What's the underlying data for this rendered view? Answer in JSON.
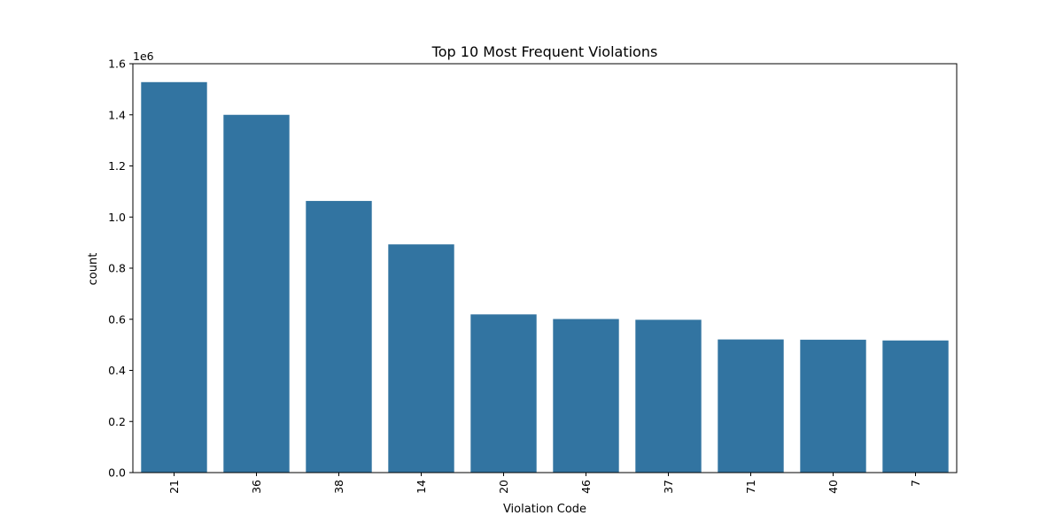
{
  "chart_data": {
    "type": "bar",
    "title": "Top 10 Most Frequent Violations",
    "xlabel": "Violation Code",
    "ylabel": "count",
    "y_scale_label": "1e6",
    "categories": [
      "21",
      "36",
      "38",
      "14",
      "20",
      "46",
      "37",
      "71",
      "40",
      "7"
    ],
    "values": [
      1528000,
      1400000,
      1063000,
      893000,
      619000,
      601000,
      598000,
      521000,
      520000,
      517000
    ],
    "ylim": [
      0,
      1600000
    ],
    "yticks": [
      0,
      200000,
      400000,
      600000,
      800000,
      1000000,
      1200000,
      1400000,
      1600000
    ],
    "ytick_labels": [
      "0.0",
      "0.2",
      "0.4",
      "0.6",
      "0.8",
      "1.0",
      "1.2",
      "1.4",
      "1.6"
    ],
    "bar_color": "#3274a1",
    "grid": false,
    "legend": "none",
    "xtick_rotation": "vertical"
  }
}
